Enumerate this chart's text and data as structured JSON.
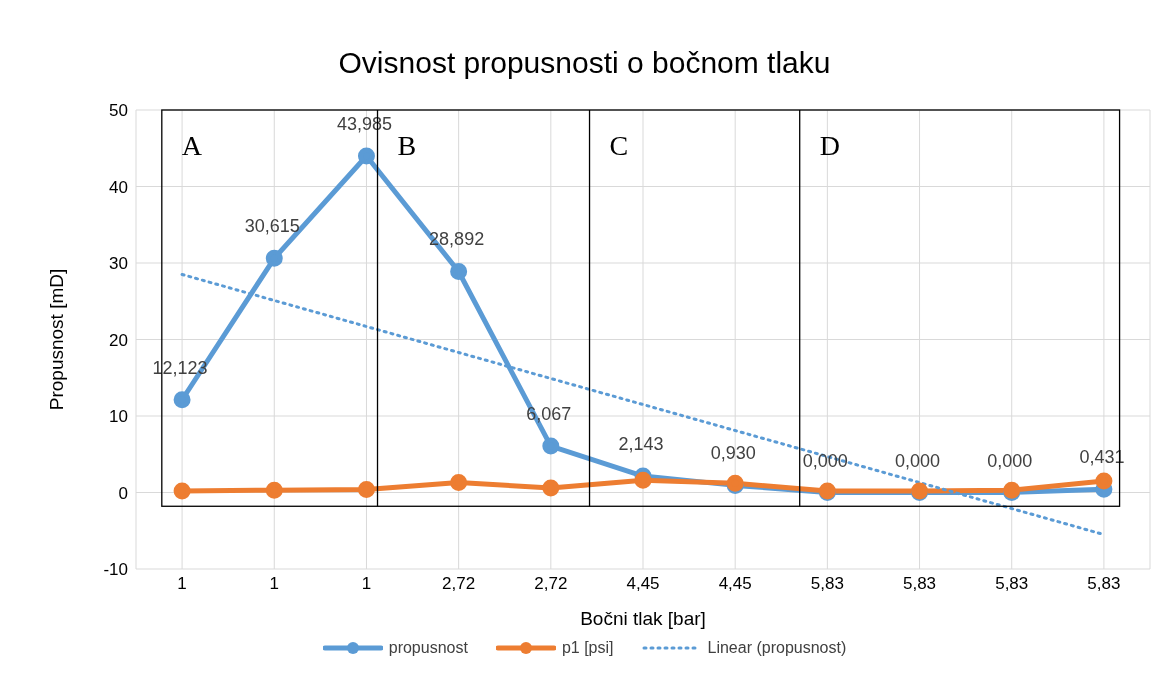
{
  "chart_data": {
    "type": "line",
    "title": "Ovisnost propusnosti o bočnom tlaku",
    "xlabel": "Bočni tlak [bar]",
    "ylabel": "Propusnost [mD]",
    "categories": [
      "1",
      "1",
      "1",
      "2,72",
      "2,72",
      "4,45",
      "4,45",
      "5,83",
      "5,83",
      "5,83",
      "5,83"
    ],
    "series": [
      {
        "name": "propusnost",
        "color": "#5b9bd5",
        "values": [
          12.123,
          30.615,
          43.985,
          28.892,
          6.067,
          2.143,
          0.93,
          0.0,
          0.0,
          0.0,
          0.431
        ],
        "value_labels": [
          "12,123",
          "30,615",
          "43,985",
          "28,892",
          "6,067",
          "2,143",
          "0,930",
          "0,000",
          "0,000",
          "0,000",
          "0,431"
        ],
        "marker": "circle"
      },
      {
        "name": "p1 [psi]",
        "color": "#ed7d31",
        "values": [
          0.2,
          0.3,
          0.4,
          1.3,
          0.6,
          1.6,
          1.2,
          0.2,
          0.2,
          0.3,
          1.5
        ],
        "marker": "circle"
      },
      {
        "name": "Linear (propusnost)",
        "color": "#5b9bd5",
        "values": [
          28.5,
          25.1,
          21.7,
          18.3,
          14.9,
          11.5,
          8.1,
          4.7,
          1.3,
          -2.1,
          -5.5
        ],
        "marker": "none",
        "line_style": "dotted"
      }
    ],
    "annotations": [
      "A",
      "B",
      "C",
      "D"
    ],
    "ylim": [
      -10,
      50
    ],
    "yticks": [
      -10,
      0,
      10,
      20,
      30,
      40,
      50
    ],
    "grid": true,
    "legend": "bottom"
  }
}
